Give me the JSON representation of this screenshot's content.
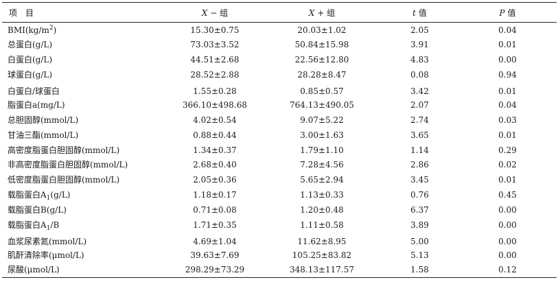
{
  "table": {
    "headers": {
      "item": "项　目",
      "x_minus_var": "X",
      "x_minus_suffix": " − 组",
      "x_plus_var": "X",
      "x_plus_suffix": " + 组",
      "t_var": "t",
      "t_suffix": " 值",
      "p_var": "P",
      "p_suffix": " 值"
    },
    "rows": [
      {
        "item": "BMI(kg/m",
        "item_sup": "2",
        "item_tail": ")",
        "x_minus": "15.30±0.75",
        "x_plus": "20.03±1.02",
        "t": "2.05",
        "p": "0.04"
      },
      {
        "item": "总蛋白(g/L)",
        "x_minus": "73.03±3.52",
        "x_plus": "50.84±15.98",
        "t": "3.91",
        "p": "0.01"
      },
      {
        "item": "白蛋白(g/L)",
        "x_minus": "44.51±2.68",
        "x_plus": "22.56±12.80",
        "t": "4.83",
        "p": "0.00"
      },
      {
        "item": "球蛋白(g/L)",
        "x_minus": "28.52±2.88",
        "x_plus": "28.28±8.47",
        "t": "0.08",
        "p": "0.94"
      },
      {
        "item": "白蛋白/球蛋白",
        "x_minus": "1.55±0.28",
        "x_plus": "0.85±0.57",
        "t": "3.42",
        "p": "0.01"
      },
      {
        "item": "脂蛋白a(mg/L)",
        "x_minus": "366.10±498.68",
        "x_plus": "764.13±490.05",
        "t": "2.07",
        "p": "0.04"
      },
      {
        "item": "总胆固醇(mmol/L)",
        "x_minus": "4.02±0.54",
        "x_plus": "9.07±5.22",
        "t": "2.74",
        "p": "0.03"
      },
      {
        "item": "甘油三酯(mmol/L)",
        "x_minus": "0.88±0.44",
        "x_plus": "3.00±1.63",
        "t": "3.65",
        "p": "0.01"
      },
      {
        "item": "高密度脂蛋白胆固醇(mmol/L)",
        "x_minus": "1.34±0.37",
        "x_plus": "1.79±1.10",
        "t": "1.14",
        "p": "0.29"
      },
      {
        "item": "非高密度脂蛋白胆固醇(mmol/L)",
        "x_minus": "2.68±0.40",
        "x_plus": "7.28±4.56",
        "t": "2.86",
        "p": "0.02"
      },
      {
        "item": "低密度脂蛋白胆固醇(mmol/L)",
        "x_minus": "2.05±0.36",
        "x_plus": "5.65±2.94",
        "t": "3.45",
        "p": "0.01"
      },
      {
        "item": "载脂蛋白A",
        "item_sub": "1",
        "item_tail": "(g/L)",
        "x_minus": "1.18±0.17",
        "x_plus": "1.13±0.33",
        "t": "0.76",
        "p": "0.45"
      },
      {
        "item": "载脂蛋白B(g/L)",
        "x_minus": "0.71±0.08",
        "x_plus": "1.20±0.48",
        "t": "6.37",
        "p": "0.00"
      },
      {
        "item": "载脂蛋白A",
        "item_sub": "1",
        "item_tail": "/B",
        "x_minus": "1.71±0.35",
        "x_plus": "1.11±0.58",
        "t": "3.89",
        "p": "0.00"
      },
      {
        "item": "血浆尿素氮(mmol/L)",
        "x_minus": "4.69±1.04",
        "x_plus": "11.62±8.95",
        "t": "5.00",
        "p": "0.00"
      },
      {
        "item": "肌酐清除率(μmol/L)",
        "x_minus": "39.63±7.69",
        "x_plus": "105.25±83.82",
        "t": "5.13",
        "p": "0.00"
      },
      {
        "item": "尿酸(μmol/L)",
        "x_minus": "298.29±73.29",
        "x_plus": "348.13±117.57",
        "t": "1.58",
        "p": "0.12"
      }
    ]
  }
}
